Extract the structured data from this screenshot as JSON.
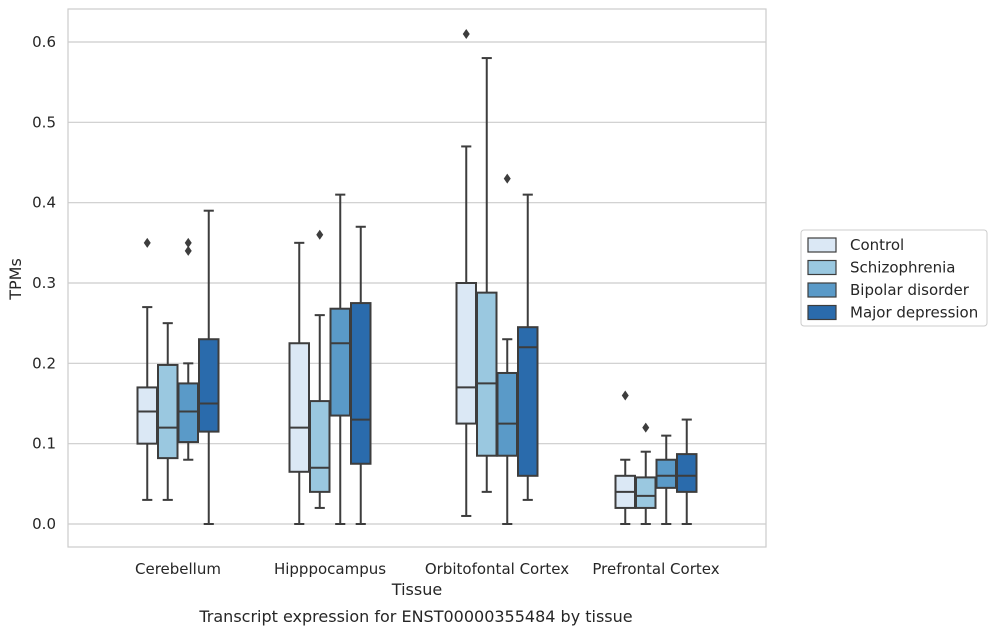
{
  "caption": "Transcript expression for ENST00000355484 by tissue",
  "chart_data": {
    "type": "box",
    "title": "",
    "xlabel": "Tissue",
    "ylabel": "TPMs",
    "ylim": [
      -0.03,
      0.64
    ],
    "yticks": [
      0.0,
      0.1,
      0.2,
      0.3,
      0.4,
      0.5,
      0.6
    ],
    "ytick_labels": [
      "0.0",
      "0.1",
      "0.2",
      "0.3",
      "0.4",
      "0.5",
      "0.6"
    ],
    "grid": "horizontal",
    "legend_position": "right",
    "categories": [
      "Cerebellum",
      "Hipppocampus",
      "Orbitofontal Cortex",
      "Prefrontal Cortex"
    ],
    "series": [
      {
        "name": "Control",
        "color": "#dbe8f5",
        "boxes": [
          {
            "whislo": 0.03,
            "q1": 0.1,
            "med": 0.14,
            "q3": 0.17,
            "whishi": 0.27,
            "fliers": [
              0.35
            ]
          },
          {
            "whislo": 0.0,
            "q1": 0.065,
            "med": 0.12,
            "q3": 0.225,
            "whishi": 0.35,
            "fliers": []
          },
          {
            "whislo": 0.01,
            "q1": 0.125,
            "med": 0.17,
            "q3": 0.3,
            "whishi": 0.47,
            "fliers": [
              0.61
            ]
          },
          {
            "whislo": 0.0,
            "q1": 0.02,
            "med": 0.04,
            "q3": 0.06,
            "whishi": 0.08,
            "fliers": [
              0.16
            ]
          }
        ]
      },
      {
        "name": "Schizophrenia",
        "color": "#9ac8e0",
        "boxes": [
          {
            "whislo": 0.03,
            "q1": 0.082,
            "med": 0.12,
            "q3": 0.198,
            "whishi": 0.25,
            "fliers": []
          },
          {
            "whislo": 0.02,
            "q1": 0.04,
            "med": 0.07,
            "q3": 0.153,
            "whishi": 0.26,
            "fliers": [
              0.36
            ]
          },
          {
            "whislo": 0.04,
            "q1": 0.085,
            "med": 0.175,
            "q3": 0.288,
            "whishi": 0.58,
            "fliers": []
          },
          {
            "whislo": 0.0,
            "q1": 0.02,
            "med": 0.035,
            "q3": 0.058,
            "whishi": 0.09,
            "fliers": [
              0.12
            ]
          }
        ]
      },
      {
        "name": "Bipolar disorder",
        "color": "#5a9ac8",
        "boxes": [
          {
            "whislo": 0.08,
            "q1": 0.102,
            "med": 0.14,
            "q3": 0.175,
            "whishi": 0.2,
            "fliers": [
              0.34,
              0.35
            ]
          },
          {
            "whislo": 0.0,
            "q1": 0.135,
            "med": 0.225,
            "q3": 0.268,
            "whishi": 0.41,
            "fliers": []
          },
          {
            "whislo": 0.0,
            "q1": 0.085,
            "med": 0.125,
            "q3": 0.188,
            "whishi": 0.23,
            "fliers": [
              0.43
            ]
          },
          {
            "whislo": 0.0,
            "q1": 0.045,
            "med": 0.06,
            "q3": 0.08,
            "whishi": 0.11,
            "fliers": []
          }
        ]
      },
      {
        "name": "Major depression",
        "color": "#2a6bac",
        "boxes": [
          {
            "whislo": 0.0,
            "q1": 0.115,
            "med": 0.15,
            "q3": 0.23,
            "whishi": 0.39,
            "fliers": []
          },
          {
            "whislo": 0.0,
            "q1": 0.075,
            "med": 0.13,
            "q3": 0.275,
            "whishi": 0.37,
            "fliers": []
          },
          {
            "whislo": 0.03,
            "q1": 0.06,
            "med": 0.22,
            "q3": 0.245,
            "whishi": 0.41,
            "fliers": []
          },
          {
            "whislo": 0.0,
            "q1": 0.04,
            "med": 0.06,
            "q3": 0.087,
            "whishi": 0.13,
            "fliers": []
          }
        ]
      }
    ]
  }
}
